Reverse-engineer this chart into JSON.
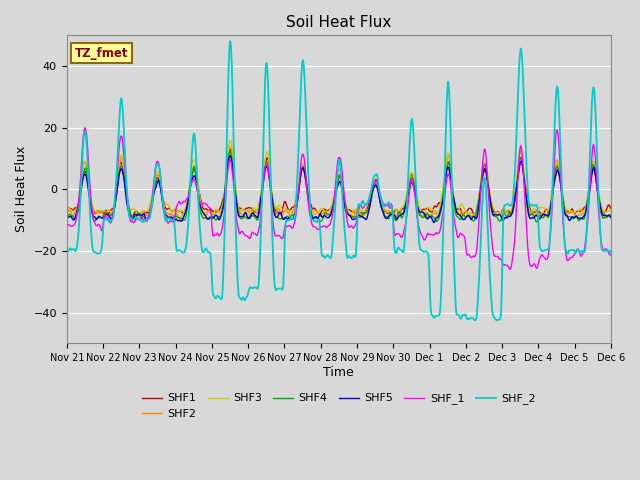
{
  "title": "Soil Heat Flux",
  "xlabel": "Time",
  "ylabel": "Soil Heat Flux",
  "ylim": [
    -50,
    50
  ],
  "annotation_text": "TZ_fmet",
  "annotation_color": "#8B0000",
  "annotation_bg": "#FFFF99",
  "annotation_border": "#8B6914",
  "bg_color": "#D8D8D8",
  "line_colors": {
    "SHF1": "#CC0000",
    "SHF2": "#FF8800",
    "SHF3": "#CCCC00",
    "SHF4": "#00AA00",
    "SHF5": "#0000CC",
    "SHF_1": "#FF00FF",
    "SHF_2": "#00CCCC"
  },
  "tick_labels": [
    "Nov 21",
    "Nov 22",
    "Nov 23",
    "Nov 24",
    "Nov 25",
    "Nov 26",
    "Nov 27",
    "Nov 28",
    "Nov 29",
    "Nov 30",
    "Dec 1",
    "Dec 2",
    "Dec 3",
    "Dec 4",
    "Dec 5",
    "Dec 6"
  ],
  "n_days": 15,
  "pts_per_day": 48
}
